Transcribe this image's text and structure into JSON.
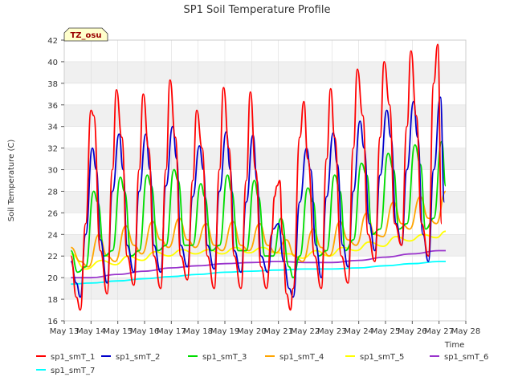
{
  "chart_data": {
    "type": "line",
    "title": "SP1 Soil Temperature Profile",
    "xlabel": "Time",
    "ylabel": "Soil Temperature (C)",
    "annotation": "TZ_osu",
    "ylim": [
      16,
      42
    ],
    "xlim": [
      13,
      28
    ],
    "y_ticks": [
      16,
      18,
      20,
      22,
      24,
      26,
      28,
      30,
      32,
      34,
      36,
      38,
      40,
      42
    ],
    "x_ticks": [
      {
        "value": 13,
        "label": "May 13"
      },
      {
        "value": 14,
        "label": "May 14"
      },
      {
        "value": 15,
        "label": "May 15"
      },
      {
        "value": 16,
        "label": "May 16"
      },
      {
        "value": 17,
        "label": "May 17"
      },
      {
        "value": 18,
        "label": "May 18"
      },
      {
        "value": 19,
        "label": "May 19"
      },
      {
        "value": 20,
        "label": "May 20"
      },
      {
        "value": 21,
        "label": "May 21"
      },
      {
        "value": 22,
        "label": "May 22"
      },
      {
        "value": 23,
        "label": "May 23"
      },
      {
        "value": 24,
        "label": "May 24"
      },
      {
        "value": 25,
        "label": "May 25"
      },
      {
        "value": 26,
        "label": "May 26"
      },
      {
        "value": 27,
        "label": "May 27"
      },
      {
        "value": 28,
        "label": "May 28"
      }
    ],
    "grid": true,
    "legend_position": "bottom",
    "series": [
      {
        "name": "sp1_smT_1",
        "color": "#ff0000",
        "x": [
          13.25,
          13.45,
          13.6,
          13.8,
          14.0,
          14.1,
          14.35,
          14.6,
          14.8,
          14.95,
          15.15,
          15.35,
          15.6,
          15.8,
          15.95,
          16.15,
          16.35,
          16.6,
          16.8,
          16.95,
          17.15,
          17.35,
          17.6,
          17.8,
          17.95,
          18.15,
          18.35,
          18.6,
          18.8,
          18.95,
          19.15,
          19.35,
          19.6,
          19.8,
          19.95,
          20.15,
          20.35,
          20.55,
          20.75,
          20.85,
          20.95,
          21.05,
          21.15,
          21.3,
          21.45,
          21.55,
          21.8,
          21.95,
          22.1,
          22.35,
          22.6,
          22.8,
          22.95,
          23.1,
          23.35,
          23.6,
          23.8,
          23.95,
          24.15,
          24.35,
          24.6,
          24.8,
          24.95,
          25.15,
          25.35,
          25.6,
          25.8,
          25.95,
          26.15,
          26.35,
          26.6,
          26.8,
          26.95,
          27.1
        ],
        "values": [
          22.0,
          18.2,
          17.0,
          25.0,
          35.5,
          35.0,
          22.5,
          18.5,
          30.0,
          37.4,
          33.0,
          22.0,
          19.3,
          30.0,
          37.0,
          32.0,
          22.0,
          19.0,
          30.0,
          38.3,
          33.0,
          22.0,
          19.8,
          29.0,
          35.5,
          32.0,
          22.0,
          19.0,
          30.0,
          37.6,
          32.0,
          22.0,
          19.0,
          29.0,
          37.2,
          30.0,
          21.0,
          19.0,
          24.0,
          27.5,
          28.5,
          29.0,
          24.0,
          18.5,
          17.0,
          19.0,
          33.0,
          36.3,
          31.0,
          22.0,
          19.0,
          31.0,
          37.5,
          33.0,
          22.0,
          19.5,
          32.0,
          39.3,
          35.0,
          24.0,
          21.5,
          33.0,
          40.0,
          36.0,
          25.0,
          23.0,
          34.0,
          41.0,
          35.0,
          25.0,
          22.0,
          38.0,
          41.6,
          25.0
        ]
      },
      {
        "name": "sp1_smT_2",
        "color": "#0000cc",
        "x": [
          13.25,
          13.45,
          13.6,
          13.8,
          14.05,
          14.2,
          14.35,
          14.6,
          14.8,
          15.05,
          15.2,
          15.35,
          15.6,
          15.8,
          16.05,
          16.2,
          16.35,
          16.6,
          16.8,
          17.05,
          17.2,
          17.35,
          17.6,
          17.8,
          18.05,
          18.2,
          18.35,
          18.6,
          18.8,
          19.05,
          19.2,
          19.35,
          19.6,
          19.8,
          20.05,
          20.2,
          20.35,
          20.6,
          20.8,
          21.0,
          21.2,
          21.4,
          21.55,
          21.8,
          22.05,
          22.2,
          22.4,
          22.6,
          22.8,
          23.05,
          23.2,
          23.4,
          23.6,
          23.8,
          24.05,
          24.2,
          24.4,
          24.6,
          24.8,
          25.05,
          25.2,
          25.4,
          25.6,
          25.8,
          26.05,
          26.2,
          26.4,
          26.6,
          26.8,
          27.05,
          27.2
        ],
        "values": [
          21.5,
          19.5,
          18.2,
          24.0,
          32.0,
          30.0,
          23.5,
          19.5,
          28.0,
          33.3,
          30.0,
          23.0,
          20.5,
          28.0,
          33.3,
          30.0,
          23.0,
          20.5,
          28.5,
          34.0,
          31.0,
          23.0,
          21.0,
          27.5,
          32.2,
          30.0,
          23.0,
          20.8,
          28.0,
          33.5,
          30.0,
          22.5,
          20.5,
          27.0,
          33.2,
          29.0,
          22.0,
          20.5,
          24.5,
          25.0,
          21.5,
          19.0,
          18.2,
          27.0,
          32.0,
          30.0,
          23.0,
          20.0,
          27.5,
          33.4,
          30.5,
          23.0,
          21.0,
          28.0,
          34.5,
          32.0,
          25.0,
          22.5,
          29.5,
          35.5,
          33.0,
          25.0,
          23.0,
          30.0,
          36.3,
          33.0,
          24.0,
          21.5,
          30.0,
          36.7,
          27.0
        ]
      },
      {
        "name": "sp1_smT_3",
        "color": "#00dd00",
        "x": [
          13.25,
          13.5,
          13.8,
          14.1,
          14.25,
          14.5,
          14.8,
          15.1,
          15.25,
          15.5,
          15.8,
          16.1,
          16.25,
          16.5,
          16.8,
          17.1,
          17.25,
          17.5,
          17.8,
          18.1,
          18.25,
          18.5,
          18.8,
          19.1,
          19.25,
          19.5,
          19.8,
          20.1,
          20.25,
          20.5,
          20.8,
          21.1,
          21.4,
          21.55,
          21.8,
          22.1,
          22.3,
          22.5,
          22.8,
          23.1,
          23.3,
          23.5,
          23.8,
          24.1,
          24.3,
          24.5,
          24.8,
          25.1,
          25.3,
          25.5,
          25.8,
          26.1,
          26.3,
          26.5,
          26.8,
          27.1,
          27.25
        ],
        "values": [
          22.5,
          20.5,
          21.0,
          28.0,
          27.0,
          22.0,
          22.5,
          29.3,
          28.0,
          22.0,
          22.5,
          29.5,
          28.5,
          22.5,
          23.0,
          30.0,
          29.0,
          23.0,
          23.0,
          28.7,
          27.5,
          22.5,
          23.0,
          29.5,
          28.0,
          22.5,
          22.5,
          29.0,
          27.5,
          22.0,
          22.0,
          25.5,
          21.0,
          20.0,
          22.0,
          28.3,
          27.0,
          22.0,
          22.5,
          29.5,
          28.0,
          22.5,
          23.5,
          30.6,
          29.5,
          24.0,
          24.5,
          31.5,
          30.0,
          24.5,
          25.0,
          32.3,
          30.5,
          24.5,
          25.5,
          32.6,
          28.5
        ]
      },
      {
        "name": "sp1_smT_4",
        "color": "#ffa500",
        "x": [
          13.25,
          13.6,
          13.9,
          14.3,
          14.6,
          14.9,
          15.3,
          15.6,
          15.9,
          16.3,
          16.6,
          16.9,
          17.3,
          17.6,
          17.9,
          18.3,
          18.6,
          18.9,
          19.3,
          19.6,
          19.9,
          20.3,
          20.6,
          20.9,
          21.3,
          21.6,
          21.9,
          22.3,
          22.6,
          22.9,
          23.3,
          23.6,
          23.9,
          24.3,
          24.6,
          24.9,
          25.3,
          25.6,
          25.9,
          26.3,
          26.6,
          26.9,
          27.25
        ],
        "values": [
          22.8,
          21.5,
          21.0,
          24.0,
          22.0,
          21.5,
          24.8,
          23.0,
          22.2,
          25.2,
          23.5,
          22.8,
          25.5,
          23.5,
          22.8,
          25.0,
          23.0,
          22.5,
          25.2,
          23.0,
          22.5,
          25.0,
          23.0,
          22.3,
          23.5,
          22.0,
          21.5,
          24.5,
          22.8,
          22.0,
          25.2,
          23.5,
          23.0,
          26.0,
          24.0,
          23.8,
          27.0,
          25.0,
          24.5,
          27.5,
          25.5,
          25.0,
          28.0
        ]
      },
      {
        "name": "sp1_smT_5",
        "color": "#ffff00",
        "x": [
          13.25,
          13.8,
          14.4,
          14.9,
          15.4,
          15.9,
          16.4,
          16.9,
          17.4,
          17.9,
          18.4,
          18.9,
          19.4,
          19.9,
          20.4,
          20.9,
          21.4,
          21.9,
          22.4,
          22.9,
          23.4,
          23.9,
          24.4,
          24.9,
          25.4,
          25.9,
          26.4,
          26.9,
          27.25
        ],
        "values": [
          22.2,
          20.8,
          21.6,
          21.2,
          22.0,
          21.6,
          22.4,
          22.0,
          22.6,
          22.2,
          22.6,
          22.2,
          22.8,
          22.3,
          22.8,
          22.3,
          22.2,
          21.8,
          22.5,
          22.0,
          22.8,
          22.5,
          23.3,
          22.9,
          23.8,
          23.4,
          24.0,
          23.7,
          24.3
        ]
      },
      {
        "name": "sp1_smT_6",
        "color": "#9933cc",
        "x": [
          13.25,
          14.0,
          15.0,
          16.0,
          17.0,
          18.0,
          19.0,
          20.0,
          21.0,
          22.0,
          23.0,
          24.0,
          25.0,
          26.0,
          27.0,
          27.25
        ],
        "values": [
          20.0,
          20.0,
          20.3,
          20.6,
          20.9,
          21.1,
          21.3,
          21.4,
          21.5,
          21.4,
          21.4,
          21.6,
          21.9,
          22.2,
          22.5,
          22.5
        ]
      },
      {
        "name": "sp1_smT_7",
        "color": "#00ffff",
        "x": [
          13.25,
          14.0,
          15.0,
          16.0,
          17.0,
          18.0,
          19.0,
          20.0,
          21.0,
          22.0,
          23.0,
          24.0,
          25.0,
          26.0,
          27.0,
          27.25
        ],
        "values": [
          19.4,
          19.5,
          19.7,
          19.9,
          20.1,
          20.3,
          20.5,
          20.6,
          20.7,
          20.8,
          20.8,
          20.9,
          21.1,
          21.3,
          21.5,
          21.5
        ]
      }
    ]
  }
}
